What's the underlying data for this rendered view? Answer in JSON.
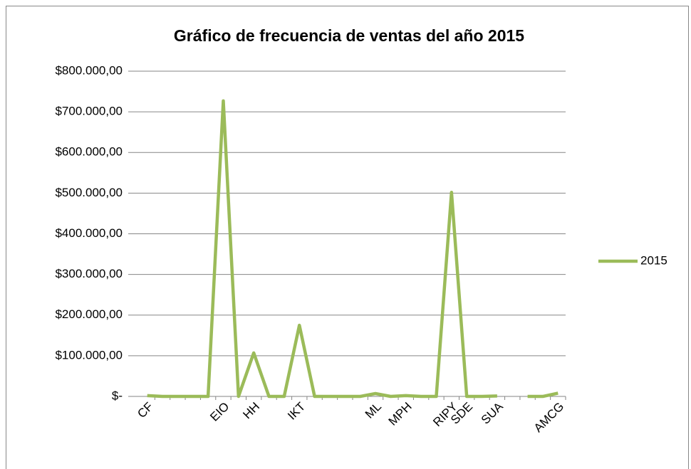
{
  "chart_data": {
    "type": "line",
    "title": "Gráfico de frecuencia de ventas del año 2015",
    "categories": [
      "CF",
      null,
      null,
      null,
      null,
      "EIO",
      null,
      "HH",
      null,
      null,
      "IKT",
      null,
      null,
      null,
      null,
      "ML",
      null,
      "MPH",
      null,
      null,
      "RIPY",
      "SDE",
      null,
      "SUA",
      null,
      null,
      null,
      "AMCG"
    ],
    "series": [
      {
        "name": "2015",
        "color": "#9bbb59",
        "values": [
          2000,
          0,
          0,
          0,
          0,
          727000,
          0,
          107000,
          0,
          0,
          175000,
          0,
          0,
          0,
          0,
          7000,
          0,
          2000,
          0,
          0,
          502000,
          0,
          0,
          1000,
          null,
          0,
          0,
          8000
        ]
      }
    ],
    "ylim": [
      0,
      800000
    ],
    "yticks": [
      {
        "value": 0,
        "label": "$-"
      },
      {
        "value": 100000,
        "label": "$100.000,00"
      },
      {
        "value": 200000,
        "label": "$200.000,00"
      },
      {
        "value": 300000,
        "label": "$300.000,00"
      },
      {
        "value": 400000,
        "label": "$400.000,00"
      },
      {
        "value": 500000,
        "label": "$500.000,00"
      },
      {
        "value": 600000,
        "label": "$600.000,00"
      },
      {
        "value": 700000,
        "label": "$700.000,00"
      },
      {
        "value": 800000,
        "label": "$800.000,00"
      }
    ],
    "grid": true,
    "legend": "right"
  }
}
